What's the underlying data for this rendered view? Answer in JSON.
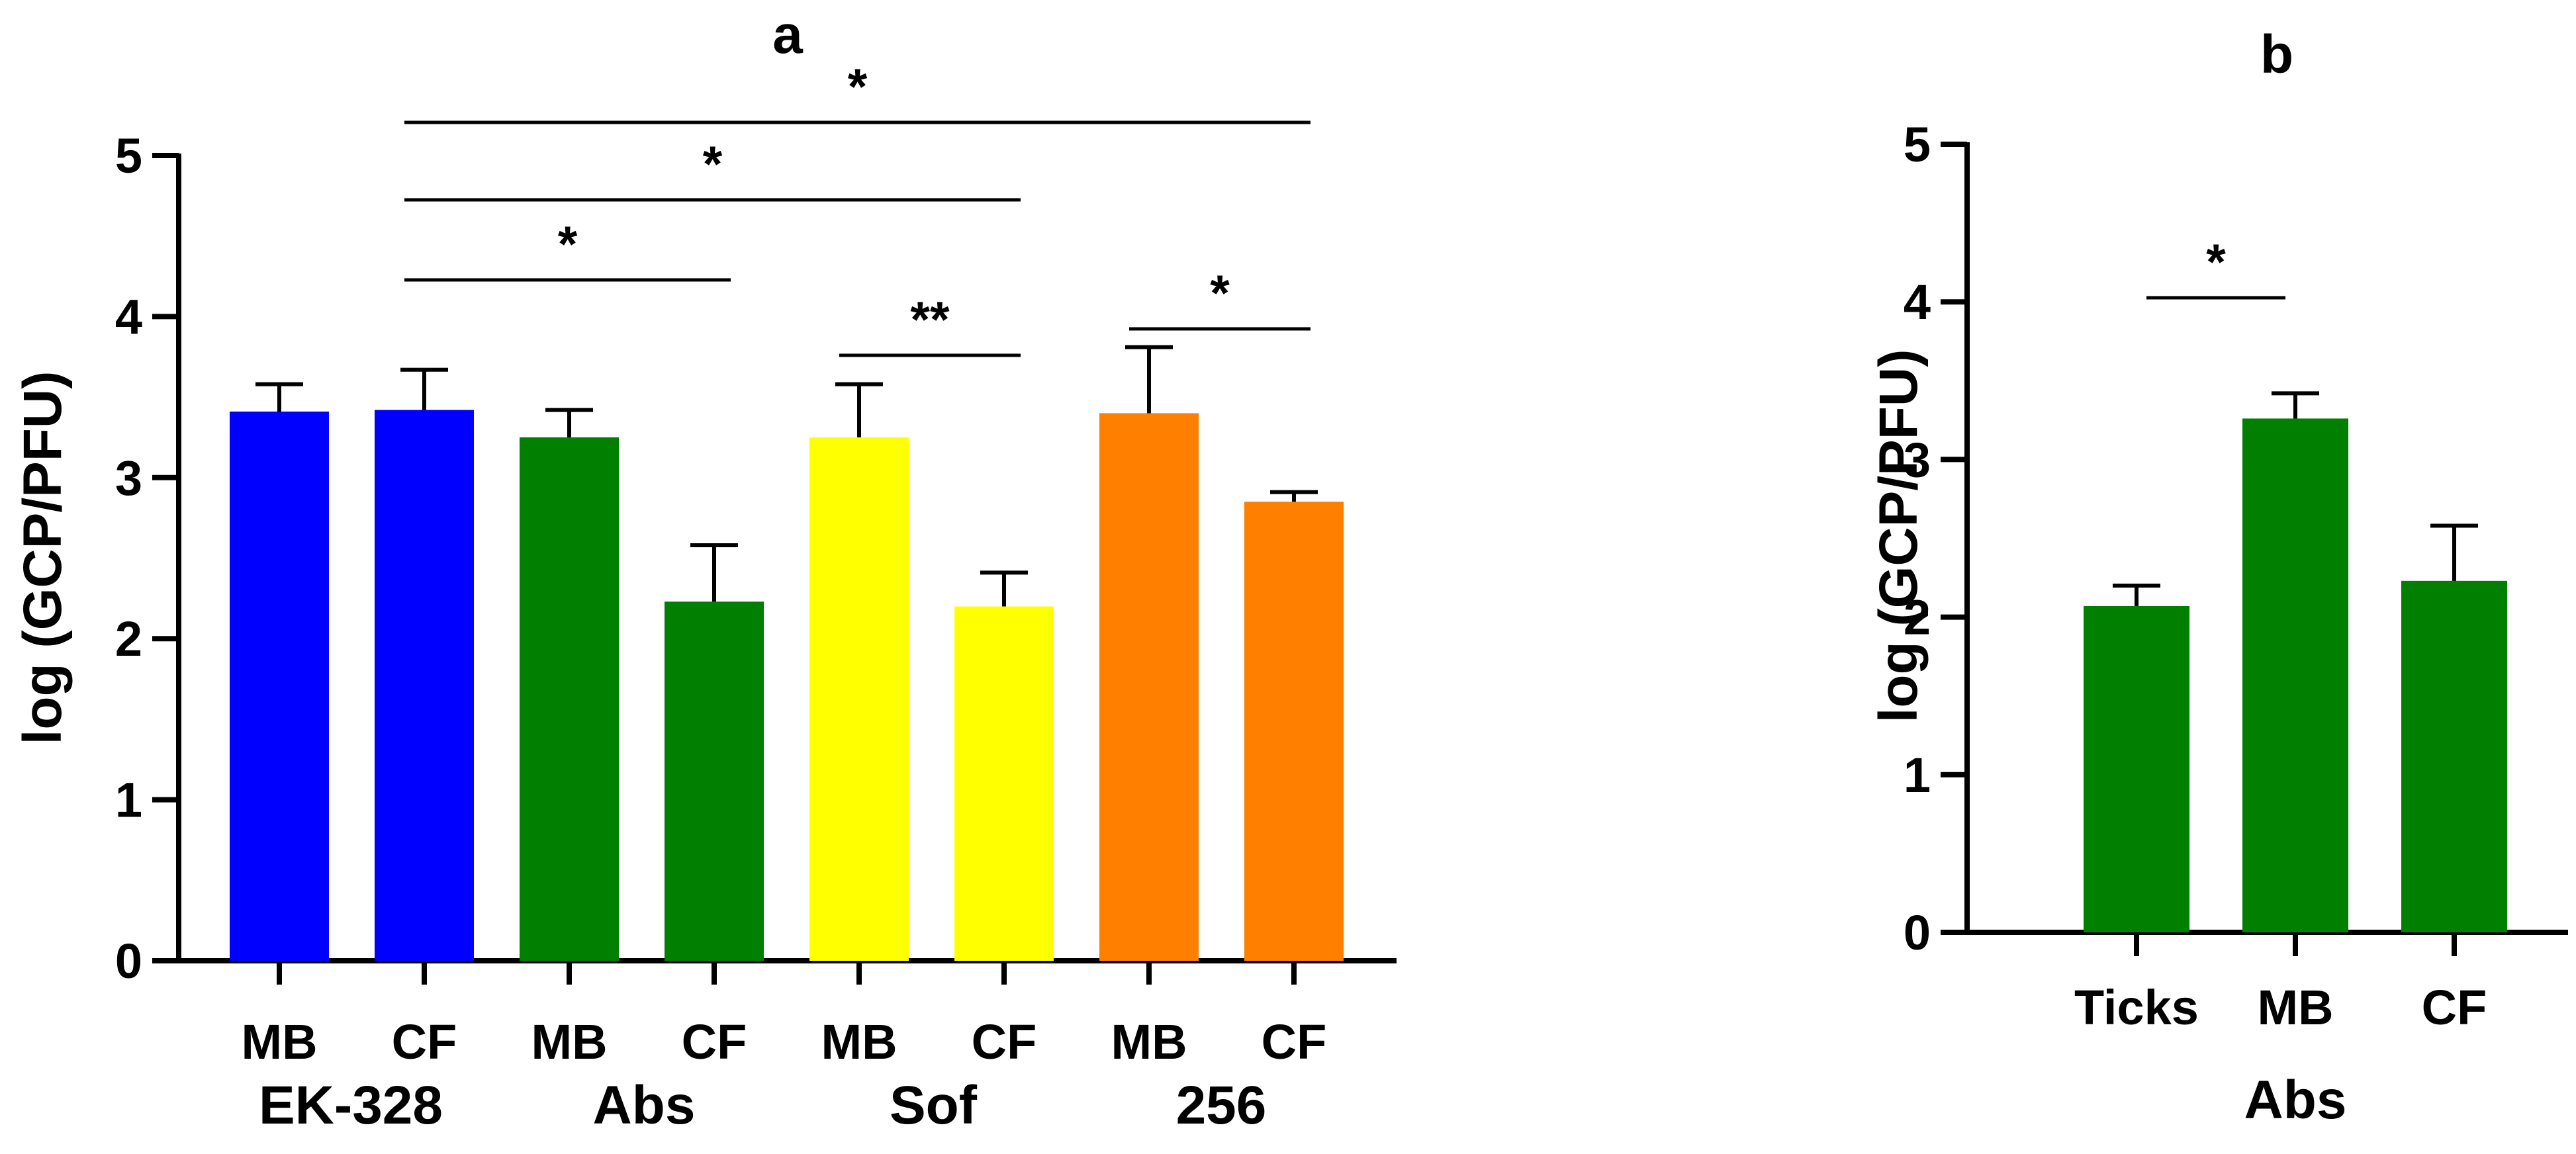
{
  "chart_data": [
    {
      "id": "a",
      "type": "bar",
      "title": "a",
      "ylabel": "log (GCP/PFU)",
      "xlabel": "",
      "ylim": [
        0,
        5
      ],
      "yticks": [
        "0",
        "1",
        "2",
        "3",
        "4",
        "5"
      ],
      "categories": [
        "MB",
        "CF",
        "MB",
        "CF",
        "MB",
        "CF",
        "MB",
        "CF"
      ],
      "groups": [
        "EK-328",
        "Abs",
        "Sof",
        "256"
      ],
      "values": [
        3.41,
        3.42,
        3.25,
        2.23,
        3.25,
        2.2,
        3.4,
        2.85
      ],
      "errors": [
        0.17,
        0.25,
        0.17,
        0.35,
        0.33,
        0.21,
        0.41,
        0.06
      ],
      "colors": [
        "#0000ff",
        "#0000ff",
        "#007f00",
        "#007f00",
        "#ffff00",
        "#ffff00",
        "#ff7f00",
        "#ff7f00"
      ],
      "significance": [
        {
          "from": 1,
          "to": 7,
          "label": "*"
        },
        {
          "from": 1,
          "to": 5,
          "label": "*"
        },
        {
          "from": 1,
          "to": 3,
          "label": "*"
        },
        {
          "from": 4,
          "to": 5,
          "label": "**"
        },
        {
          "from": 6,
          "to": 7,
          "label": "*"
        }
      ]
    },
    {
      "id": "b",
      "type": "bar",
      "title": "b",
      "ylabel": "log (GCP/PFU)",
      "xlabel": "Abs",
      "ylim": [
        0,
        5
      ],
      "yticks": [
        "0",
        "1",
        "2",
        "3",
        "4",
        "5"
      ],
      "categories": [
        "Ticks",
        "MB",
        "CF"
      ],
      "values": [
        2.07,
        3.26,
        2.23
      ],
      "errors": [
        0.13,
        0.16,
        0.35
      ],
      "colors": [
        "#007f00",
        "#007f00",
        "#007f00"
      ],
      "significance": [
        {
          "from": 0,
          "to": 1,
          "label": "*"
        }
      ]
    }
  ]
}
